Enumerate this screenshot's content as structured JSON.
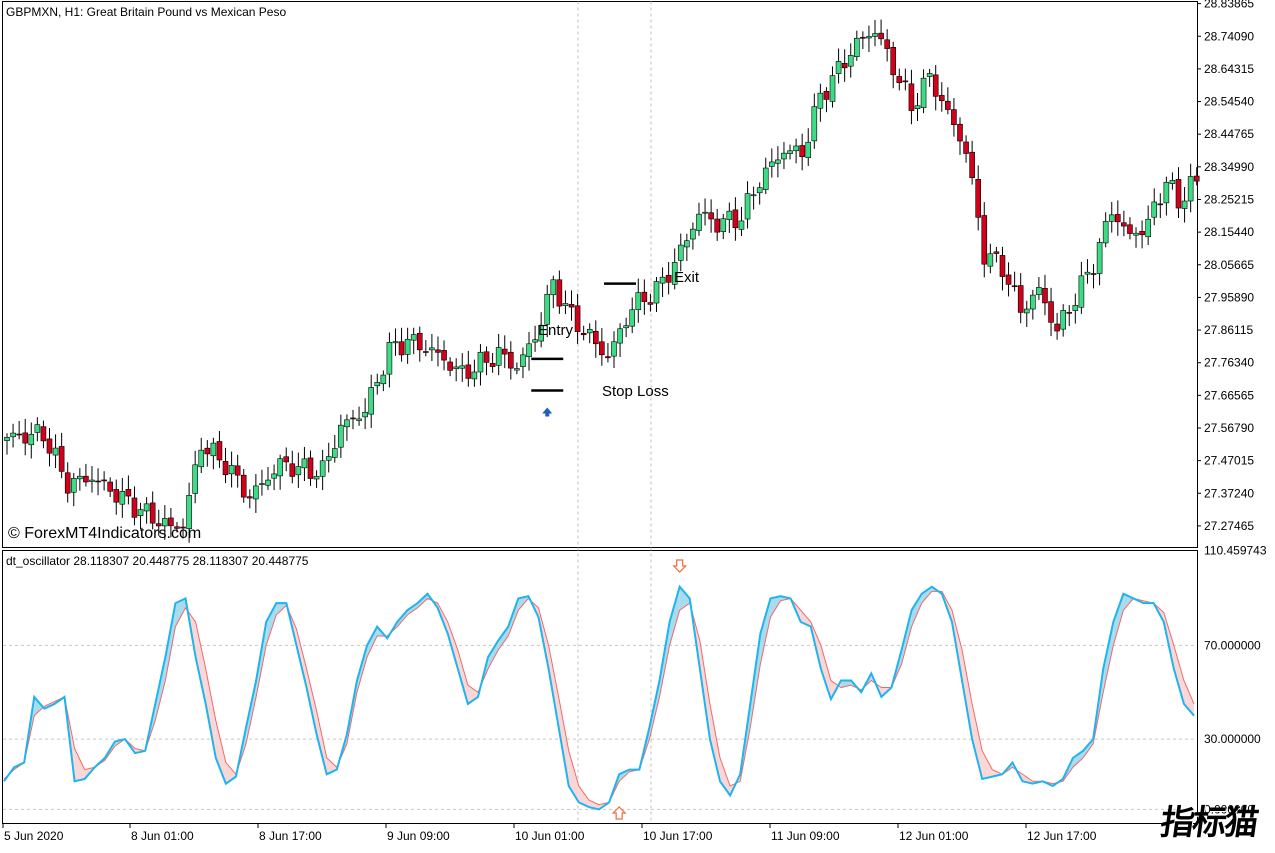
{
  "header": {
    "symbol_label": "GBPMXN, H1:  Great Britain Pound vs Mexican Peso"
  },
  "copyright": "© ForexMT4Indicators.com",
  "watermark": "指标猫",
  "oscillator": {
    "label": "dt_oscillator 28.118307 20.448775 28.118307 20.448775"
  },
  "annotations": {
    "entry": "Entry",
    "exit": "Exit",
    "stop_loss": "Stop Loss"
  },
  "colors": {
    "bull": "#3ddc84",
    "bear": "#d0021b",
    "wick": "#000000",
    "osc_fast": "#1fb3f0",
    "osc_slow": "#f06a6a",
    "fill_up": "#a8dcec",
    "fill_down": "#f9d7d7",
    "buy_arrow": "#1f5fbf",
    "signal_arrow": "#f06a3c",
    "grid": "#c8c8c8"
  },
  "chart_data": [
    {
      "type": "candlestick",
      "title": "GBPMXN, H1:  Great Britain Pound vs Mexican Peso",
      "y_ticks": [
        "28.83865",
        "28.74090",
        "28.64315",
        "28.54540",
        "28.44765",
        "28.34990",
        "28.25215",
        "28.15440",
        "28.05665",
        "27.95890",
        "27.86115",
        "27.76340",
        "27.66565",
        "27.56790",
        "27.47015",
        "27.37240",
        "27.27465"
      ],
      "x_ticks": [
        "5 Jun 2020",
        "8 Jun 01:00",
        "8 Jun 17:00",
        "9 Jun 09:00",
        "10 Jun 01:00",
        "10 Jun 17:00",
        "11 Jun 09:00",
        "12 Jun 01:00",
        "12 Jun 17:00"
      ],
      "ylim": [
        27.21,
        28.845
      ],
      "anchors": [
        [
          0,
          27.54
        ],
        [
          6,
          27.55
        ],
        [
          10,
          27.4
        ],
        [
          14,
          27.42
        ],
        [
          18,
          27.37
        ],
        [
          23,
          27.31
        ],
        [
          27,
          27.27
        ],
        [
          29,
          27.28
        ],
        [
          32,
          27.52
        ],
        [
          36,
          27.46
        ],
        [
          40,
          27.36
        ],
        [
          45,
          27.46
        ],
        [
          50,
          27.44
        ],
        [
          52,
          27.44
        ],
        [
          55,
          27.57
        ],
        [
          59,
          27.62
        ],
        [
          63,
          27.8
        ],
        [
          66,
          27.83
        ],
        [
          70,
          27.8
        ],
        [
          75,
          27.73
        ],
        [
          77,
          27.75
        ],
        [
          81,
          27.79
        ],
        [
          84,
          27.75
        ],
        [
          87,
          27.84
        ],
        [
          90,
          28.0
        ],
        [
          93,
          27.9
        ],
        [
          96,
          27.84
        ],
        [
          99,
          27.78
        ],
        [
          103,
          27.93
        ],
        [
          107,
          27.98
        ],
        [
          110,
          28.06
        ],
        [
          114,
          28.21
        ],
        [
          117,
          28.18
        ],
        [
          121,
          28.2
        ],
        [
          124,
          28.31
        ],
        [
          128,
          28.4
        ],
        [
          131,
          28.39
        ],
        [
          134,
          28.56
        ],
        [
          137,
          28.64
        ],
        [
          140,
          28.72
        ],
        [
          143,
          28.76
        ],
        [
          146,
          28.65
        ],
        [
          149,
          28.53
        ],
        [
          152,
          28.62
        ],
        [
          155,
          28.51
        ],
        [
          158,
          28.4
        ],
        [
          161,
          28.09
        ],
        [
          164,
          28.05
        ],
        [
          167,
          27.92
        ],
        [
          170,
          27.98
        ],
        [
          173,
          27.86
        ],
        [
          176,
          27.96
        ],
        [
          179,
          28.06
        ],
        [
          182,
          28.22
        ],
        [
          185,
          28.14
        ],
        [
          188,
          28.18
        ],
        [
          191,
          28.31
        ],
        [
          193,
          28.24
        ],
        [
          195,
          28.3
        ]
      ],
      "entry_price": 27.775,
      "exit_price": 28.0,
      "stop_loss_price": 27.68,
      "entry_bar": 89,
      "exit_bar": 101,
      "buy_arrow_bar": 89
    },
    {
      "type": "line",
      "title": "dt_oscillator 28.118307 20.448775 28.118307 20.448775",
      "y_ticks": [
        "110.459743",
        "70.000000",
        "30.000000",
        "0.000000"
      ],
      "levels": [
        70,
        30,
        0
      ],
      "ylim": [
        -6,
        110.46
      ],
      "series": [
        {
          "name": "",
          "values": [
            12,
            18,
            20,
            48,
            43,
            45,
            48,
            12,
            13,
            18,
            22,
            29,
            30,
            24,
            25,
            45,
            65,
            88,
            90,
            65,
            45,
            22,
            11,
            14,
            35,
            55,
            80,
            88,
            88,
            70,
            52,
            32,
            15,
            17,
            32,
            55,
            70,
            78,
            73,
            80,
            85,
            88,
            92,
            86,
            75,
            60,
            45,
            48,
            65,
            72,
            78,
            90,
            91,
            82,
            60,
            35,
            10,
            3,
            1,
            0,
            3,
            15,
            17,
            17,
            35,
            55,
            80,
            95,
            90,
            60,
            30,
            12,
            6,
            15,
            45,
            75,
            90,
            91,
            90,
            80,
            78,
            60,
            47,
            55,
            55,
            50,
            58,
            48,
            52,
            68,
            85,
            92,
            95,
            92,
            80,
            55,
            30,
            13,
            14,
            15,
            20,
            12,
            11,
            12,
            10,
            13,
            22,
            25,
            30,
            60,
            80,
            92,
            90,
            88,
            88,
            80,
            60,
            45,
            40
          ]
        },
        {
          "name": "",
          "values": [
            13,
            17,
            20,
            40,
            44,
            46,
            48,
            26,
            17,
            18,
            21,
            27,
            30,
            26,
            25,
            38,
            55,
            78,
            86,
            80,
            60,
            38,
            20,
            15,
            28,
            48,
            70,
            83,
            87,
            77,
            60,
            42,
            22,
            18,
            28,
            50,
            65,
            74,
            74,
            78,
            83,
            86,
            90,
            88,
            80,
            68,
            53,
            50,
            60,
            68,
            74,
            85,
            90,
            86,
            70,
            48,
            25,
            10,
            4,
            2,
            3,
            12,
            16,
            17,
            30,
            48,
            70,
            85,
            88,
            72,
            45,
            22,
            10,
            12,
            35,
            62,
            82,
            89,
            90,
            85,
            80,
            70,
            55,
            52,
            53,
            51,
            55,
            52,
            52,
            62,
            78,
            88,
            93,
            93,
            85,
            68,
            45,
            25,
            17,
            15,
            18,
            15,
            12,
            12,
            11,
            12,
            18,
            22,
            28,
            50,
            70,
            85,
            90,
            89,
            88,
            84,
            70,
            55,
            45
          ]
        }
      ],
      "down_arrow_index": 67,
      "up_arrow_index": 61
    }
  ]
}
